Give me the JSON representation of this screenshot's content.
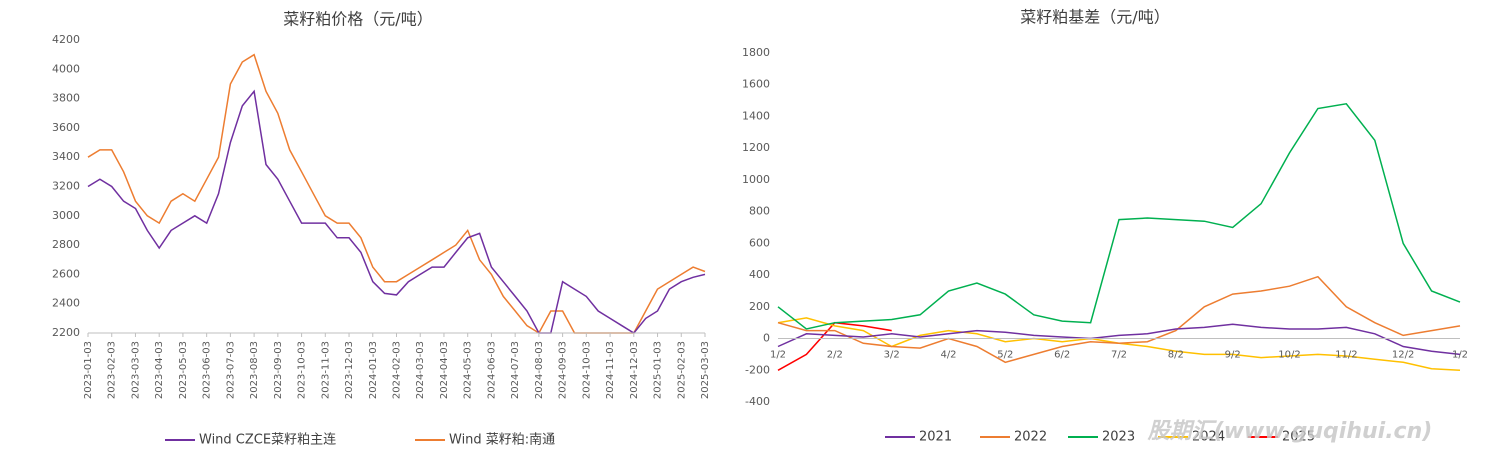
{
  "chart_data": [
    {
      "type": "line",
      "title": "菜籽粕价格（元/吨）",
      "categories": [
        "2023-01-03",
        null,
        "2023-02-03",
        null,
        "2023-03-03",
        null,
        "2023-04-03",
        null,
        "2023-05-03",
        null,
        "2023-06-03",
        null,
        "2023-07-03",
        null,
        "2023-08-03",
        null,
        "2023-09-03",
        null,
        "2023-10-03",
        null,
        "2023-11-03",
        null,
        "2023-12-03",
        null,
        "2024-01-03",
        null,
        "2024-02-03",
        null,
        "2024-03-03",
        null,
        "2024-04-03",
        null,
        "2024-05-03",
        null,
        "2024-06-03",
        null,
        "2024-07-03",
        null,
        "2024-08-03",
        null,
        "2024-09-03",
        null,
        "2024-10-03",
        null,
        "2024-11-03",
        null,
        "2024-12-03",
        null,
        "2025-01-03",
        null,
        "2025-02-03",
        null,
        "2025-03-03"
      ],
      "series": [
        {
          "name": "Wind CZCE菜籽粕主连",
          "color": "#7030a0",
          "values": [
            3200,
            3250,
            3200,
            3100,
            3050,
            2900,
            2780,
            2900,
            2950,
            3000,
            2950,
            3150,
            3500,
            3750,
            3850,
            3350,
            3250,
            3100,
            2950,
            2950,
            2950,
            2850,
            2850,
            2750,
            2550,
            2470,
            2460,
            2550,
            2600,
            2650,
            2650,
            2750,
            2850,
            2880,
            2650,
            2550,
            2450,
            2350,
            2200,
            2200,
            2550,
            2500,
            2450,
            2350,
            2300,
            2250,
            2200,
            2300,
            2350,
            2500,
            2550,
            2580,
            2600
          ]
        },
        {
          "name": "Wind 菜籽粕:南通",
          "color": "#ed7d31",
          "values": [
            3400,
            3450,
            3450,
            3300,
            3100,
            3000,
            2950,
            3100,
            3150,
            3100,
            3250,
            3400,
            3900,
            4050,
            4100,
            3850,
            3700,
            3450,
            3300,
            3150,
            3000,
            2950,
            2950,
            2850,
            2650,
            2550,
            2550,
            2600,
            2650,
            2700,
            2750,
            2800,
            2900,
            2700,
            2600,
            2450,
            2350,
            2250,
            2200,
            2350,
            2350,
            2200,
            2200,
            2200,
            2200,
            2200,
            2200,
            2350,
            2500,
            2550,
            2600,
            2650,
            2620
          ]
        }
      ],
      "ylim": [
        2200,
        4200
      ],
      "yticks": [
        2200,
        2400,
        2600,
        2800,
        3000,
        3200,
        3400,
        3600,
        3800,
        4000,
        4200
      ],
      "grid": false
    },
    {
      "type": "line",
      "title": "菜籽粕基差（元/吨）",
      "categories": [
        "1/2",
        null,
        "2/2",
        null,
        "3/2",
        null,
        "4/2",
        null,
        "5/2",
        null,
        "6/2",
        null,
        "7/2",
        null,
        "8/2",
        null,
        "9/2",
        null,
        "10/2",
        null,
        "11/2",
        null,
        "12/2",
        null,
        "1/2"
      ],
      "series": [
        {
          "name": "2021",
          "color": "#7030a0",
          "values": [
            -50,
            30,
            20,
            10,
            30,
            10,
            30,
            50,
            40,
            20,
            10,
            0,
            20,
            30,
            60,
            70,
            90,
            70,
            60,
            60,
            70,
            30,
            -50,
            -80,
            -100
          ]
        },
        {
          "name": "2022",
          "color": "#ed7d31",
          "values": [
            100,
            50,
            50,
            -30,
            -50,
            -60,
            0,
            -50,
            -150,
            -100,
            -50,
            -20,
            -30,
            -20,
            50,
            200,
            280,
            300,
            330,
            390,
            200,
            100,
            20,
            50,
            80
          ]
        },
        {
          "name": "2023",
          "color": "#00b050",
          "values": [
            200,
            60,
            100,
            110,
            120,
            150,
            300,
            350,
            280,
            150,
            110,
            100,
            750,
            760,
            750,
            740,
            700,
            850,
            1170,
            1450,
            1480,
            1250,
            600,
            300,
            230
          ]
        },
        {
          "name": "2024",
          "color": "#ffc000",
          "values": [
            100,
            130,
            80,
            50,
            -50,
            20,
            50,
            30,
            -20,
            0,
            -20,
            0,
            -30,
            -50,
            -80,
            -100,
            -100,
            -120,
            -110,
            -100,
            -110,
            -130,
            -150,
            -190,
            -200
          ]
        },
        {
          "name": "2025",
          "color": "#ff0000",
          "values": [
            -200,
            -100,
            100,
            80,
            50,
            null,
            null,
            null,
            null,
            null,
            null,
            null,
            null,
            null,
            null,
            null,
            null,
            null,
            null,
            null,
            null,
            null,
            null,
            null,
            null
          ]
        }
      ],
      "ylim": [
        -400,
        1800
      ],
      "yticks": [
        -400,
        -200,
        0,
        200,
        400,
        600,
        800,
        1000,
        1200,
        1400,
        1600,
        1800
      ],
      "grid": false
    }
  ],
  "watermark": "股期汇(www.guqihui.cn)"
}
